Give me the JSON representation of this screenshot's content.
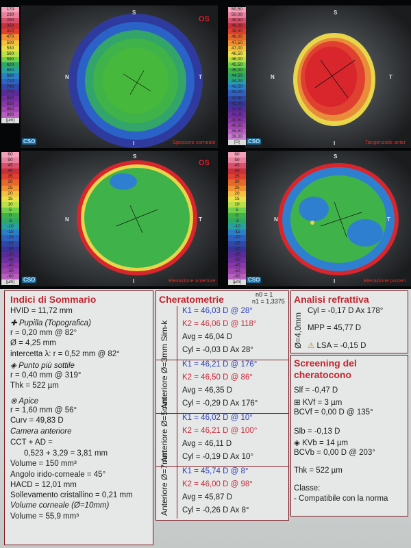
{
  "maps": {
    "scale1": [
      "170",
      "230",
      "290",
      "350",
      "410",
      "470",
      "500",
      "530",
      "560",
      "590",
      "620",
      "650",
      "680",
      "710",
      "740",
      "770",
      "800",
      "830",
      "860",
      "890"
    ],
    "scale1_unit": "[μm]",
    "scale2": [
      "50,50",
      "50,00",
      "49,50",
      "49,00",
      "48,50",
      "48,00",
      "47,50",
      "47,00",
      "46,50",
      "46,00",
      "45,50",
      "45,00",
      "44,50",
      "44,00",
      "43,50",
      "43,00",
      "42,50",
      "42,00",
      "41,50",
      "41,00",
      "40,50",
      "40,00",
      "39,50",
      "39,00"
    ],
    "scale2_unit": "[D]",
    "scale3": [
      "60",
      "50",
      "45",
      "40",
      "35",
      "30",
      "25",
      "20",
      "15",
      "10",
      "5",
      "0",
      "-5",
      "-10",
      "-15",
      "-20",
      "-25",
      "-30",
      "-35",
      "-40",
      "-45",
      "-50",
      "-60"
    ],
    "scale3_unit": "[μm]",
    "scale4": [
      "60",
      "50",
      "45",
      "40",
      "35",
      "30",
      "25",
      "20",
      "15",
      "10",
      "5",
      "0",
      "-5",
      "-10",
      "-15",
      "-20",
      "-25",
      "-30",
      "-35",
      "-40",
      "-45",
      "-50",
      "-60"
    ],
    "scale4_unit": "[μm]",
    "os": "OS",
    "cso": "CSO",
    "label1": "Spessore corneale",
    "label2": "Tangenziale anter",
    "label3": "Elevazione anteriore",
    "label4": "Elevazione posteri",
    "dir_s": "S",
    "dir_i": "I",
    "dir_n": "N",
    "dir_t": "T"
  },
  "summary": {
    "title": "Indici di Sommario",
    "hvid": "HVID = 11,72 mm",
    "pupil_label": "Pupilla (Topografica)",
    "pupil_r": "r = 0,20 mm @ 82°",
    "pupil_d": "Ø = 4,25 mm",
    "intercept": "intercetta λ: r = 0,52 mm @ 82°",
    "thin_label": "Punto più sottile",
    "thin_r": "r = 0,40 mm @ 319°",
    "thin_thk": "Thk = 522 µm",
    "apex_label": "Apice",
    "apex_r": "r = 1,60 mm @ 56°",
    "apex_curv": "Curv = 49,83 D",
    "chamber_label": "Camera anteriore",
    "cct_ad": "CCT + AD =",
    "cct_ad_val": "0,523 + 3,29 = 3,81 mm",
    "volume": "Volume = 150 mm³",
    "angle": "Angolo irido-corneale = 45°",
    "hacd": "HACD = 12,01 mm",
    "lens_rise": "Sollevamento cristallino = 0,21 mm",
    "corneal_vol_label": "Volume corneale (Ø=10mm)",
    "corneal_vol": "Volume = 55,9 mm³"
  },
  "kerato": {
    "title": "Cheratometrie",
    "n0": "n0 = 1",
    "n1": "n1 = 1,3375",
    "groups": [
      {
        "label": "Sim-k",
        "k1": "K1 = 46,03 D  @ 28°",
        "k2": "K2 = 46,06 D  @ 118°",
        "avg": "Avg = 46,04 D",
        "cyl": "Cyl = -0,03 D Ax 28°"
      },
      {
        "label": "Anteriore Ø=3mm",
        "k1": "K1 = 46,21 D  @ 176°",
        "k2": "K2 = 46,50 D  @ 86°",
        "avg": "Avg = 46,35 D",
        "cyl": "Cyl = -0,29 D Ax 176°"
      },
      {
        "label": "Anteriore Ø=5mm",
        "k1": "K1 = 46,02 D  @ 10°",
        "k2": "K2 = 46,21 D  @ 100°",
        "avg": "Avg = 46,11 D",
        "cyl": "Cyl = -0,19 D Ax 10°"
      },
      {
        "label": "Anteriore Ø=7mm",
        "k1": "K1 = 45,74 D  @ 8°",
        "k2": "K2 = 46,00 D  @ 98°",
        "avg": "Avg = 45,87 D",
        "cyl": "Cyl = -0,26 D Ax 8°"
      }
    ]
  },
  "refract": {
    "title": "Analisi refrattiva",
    "side": "Ø=4,0mm",
    "cyl": "Cyl = -0,17 D Ax 178°",
    "mpp": "MPP = 45,77 D",
    "lsa": "LSA = -0,15 D"
  },
  "screening": {
    "title1": "Screening del",
    "title2": "cheratocono",
    "slf": "Slf = -0,47 D",
    "kvf": "KVf = 3 µm",
    "bcvf": "BCVf = 0,00 D @ 135°",
    "slb": "Slb = -0,13 D",
    "kvb": "KVb = 14 µm",
    "bcvb": "BCVb = 0,00 D @ 203°",
    "thk": "Thk = 522 µm",
    "classe": "Classe:",
    "result": "- Compatibile con la norma"
  }
}
